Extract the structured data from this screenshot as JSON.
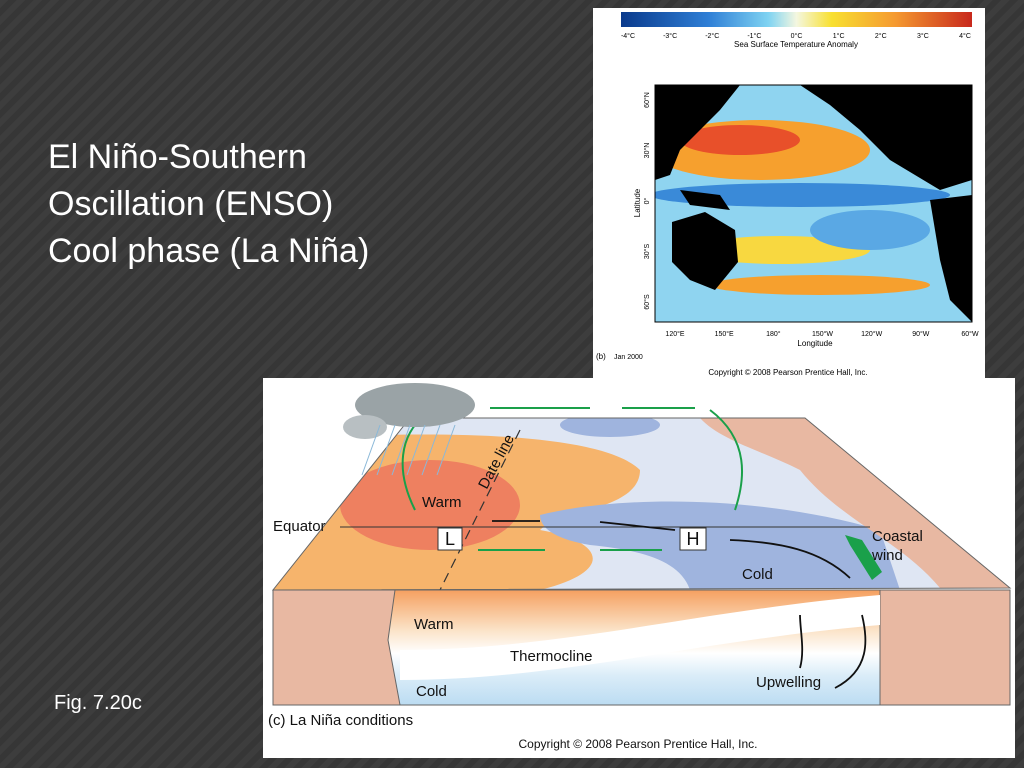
{
  "slide": {
    "title_lines": [
      "El Niño-Southern",
      "Oscillation (ENSO)",
      "Cool phase (La Niña)"
    ],
    "caption": "Fig. 7.20c"
  },
  "map": {
    "colorbar_ticks": [
      "-4°C",
      "-3°C",
      "-2°C",
      "-1°C",
      "0°C",
      "1°C",
      "2°C",
      "3°C",
      "4°C"
    ],
    "colorbar_label": "Sea Surface Temperature Anomaly",
    "latitude_ticks": [
      "60°N",
      "30°N",
      "0°",
      "30°S",
      "60°S"
    ],
    "latitude_label": "Latitude",
    "longitude_ticks": [
      "120°E",
      "150°E",
      "180°",
      "150°W",
      "120°W",
      "90°W",
      "60°W"
    ],
    "longitude_label": "Longitude",
    "panel": "(b)",
    "date": "Jan 2000",
    "copyright": "Copyright © 2008 Pearson Prentice Hall, Inc."
  },
  "diagram": {
    "date_line": "Date line",
    "surface_warm": "Warm",
    "equator": "Equator",
    "low": "L",
    "high": "H",
    "coastal_wind": [
      "Coastal",
      "wind"
    ],
    "surface_cold": "Cold",
    "deep_warm": "Warm",
    "thermocline": "Thermocline",
    "upwelling": "Upwelling",
    "deep_cold": "Cold",
    "caption": "(c) La Niña conditions",
    "copyright": "Copyright © 2008 Pearson Prentice Hall, Inc."
  }
}
